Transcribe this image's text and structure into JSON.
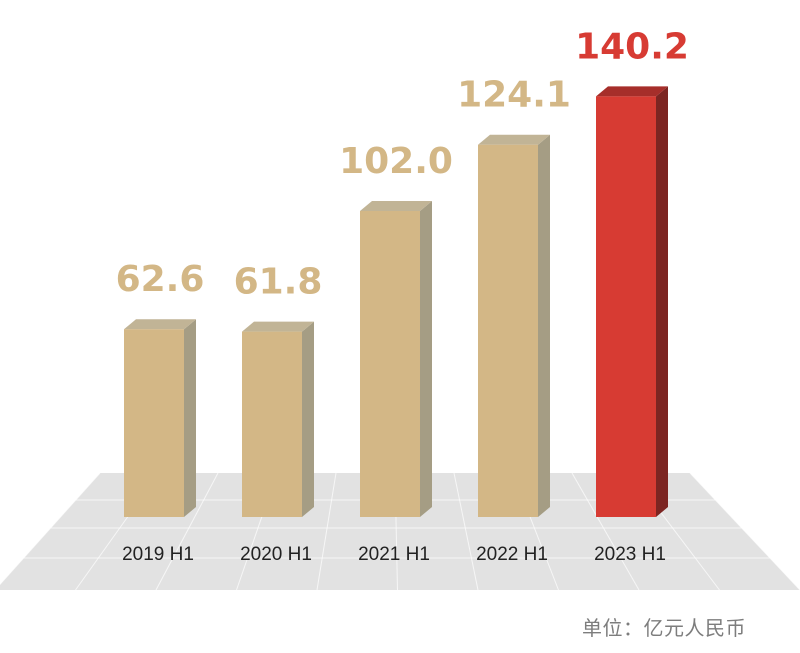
{
  "unit_label": "单位：亿元人民币",
  "colors": {
    "bar_face": "#d3b786",
    "bar_side": "#a59d84",
    "bar_top": "#c1b496",
    "highlight_face": "#d73b33",
    "highlight_side": "#7c2522",
    "highlight_top": "#a62e2a",
    "value_label": "#d3b786",
    "highlight_label": "#d73b33",
    "floor": "#e2e2e2",
    "floor_grid": "#ffffff",
    "category_text": "#222222"
  },
  "chart_data": {
    "type": "bar",
    "categories": [
      "2019 H1",
      "2020 H1",
      "2021 H1",
      "2022 H1",
      "2023 H1"
    ],
    "values": [
      62.6,
      61.8,
      102.0,
      124.1,
      140.2
    ],
    "value_labels": [
      "62.6",
      "61.8",
      "102.0",
      "124.1",
      "140.2"
    ],
    "highlight_index": 4,
    "title": "",
    "xlabel": "",
    "ylabel": "",
    "grid": false,
    "legend": "none"
  }
}
